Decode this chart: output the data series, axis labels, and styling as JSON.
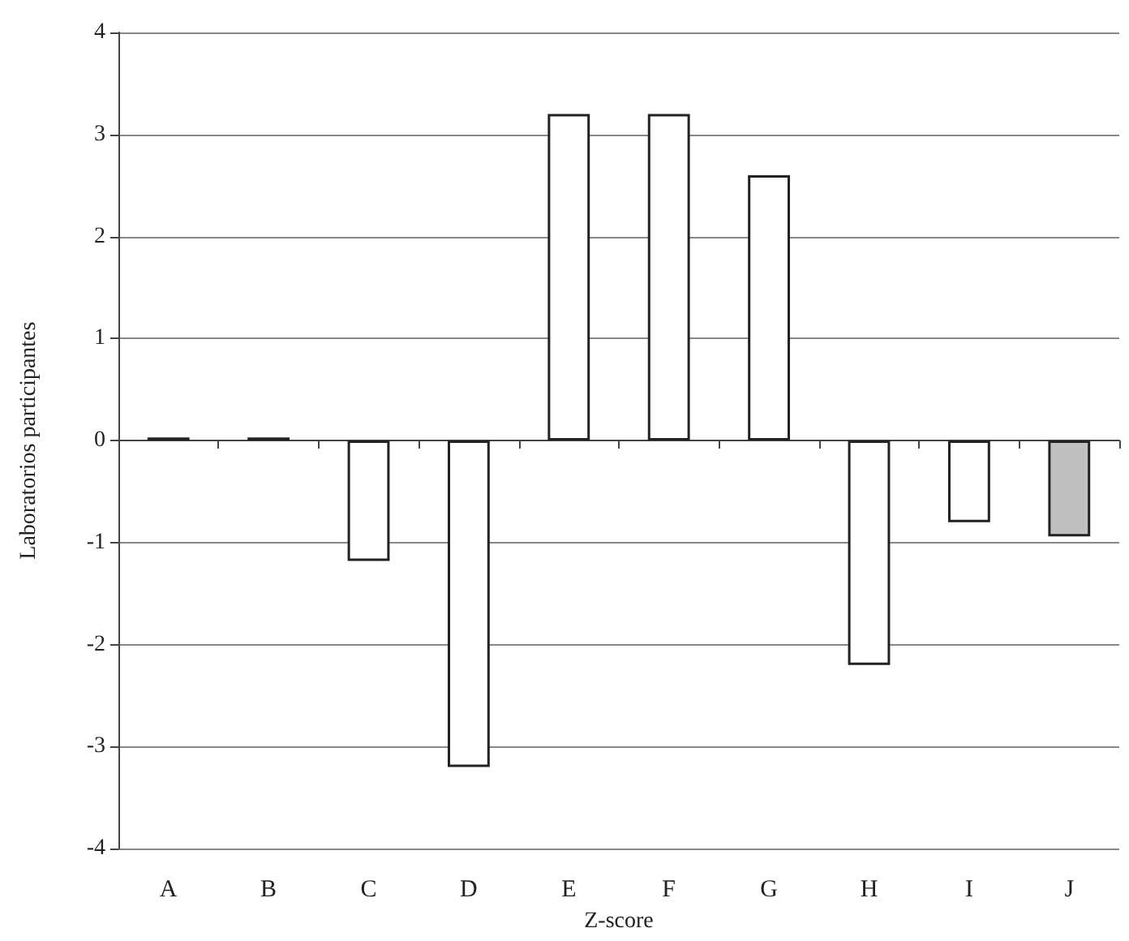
{
  "chart_data": {
    "type": "bar",
    "xlabel": "Z-score",
    "ylabel": "Laboratorios participantes",
    "categories": [
      "A",
      "B",
      "C",
      "D",
      "E",
      "F",
      "G",
      "H",
      "I",
      "J"
    ],
    "values": [
      0.03,
      0.03,
      -1.18,
      -3.2,
      3.2,
      3.2,
      2.6,
      -2.2,
      -0.8,
      -0.94
    ],
    "colors": [
      "#222222",
      "#222222",
      "#ffffff",
      "#ffffff",
      "#ffffff",
      "#ffffff",
      "#ffffff",
      "#ffffff",
      "#ffffff",
      "#c0c0c0"
    ],
    "ylim": [
      -4,
      4
    ],
    "yticks": [
      -4,
      -3,
      -2,
      -1,
      0,
      1,
      2,
      3,
      4
    ],
    "grid": "y"
  }
}
